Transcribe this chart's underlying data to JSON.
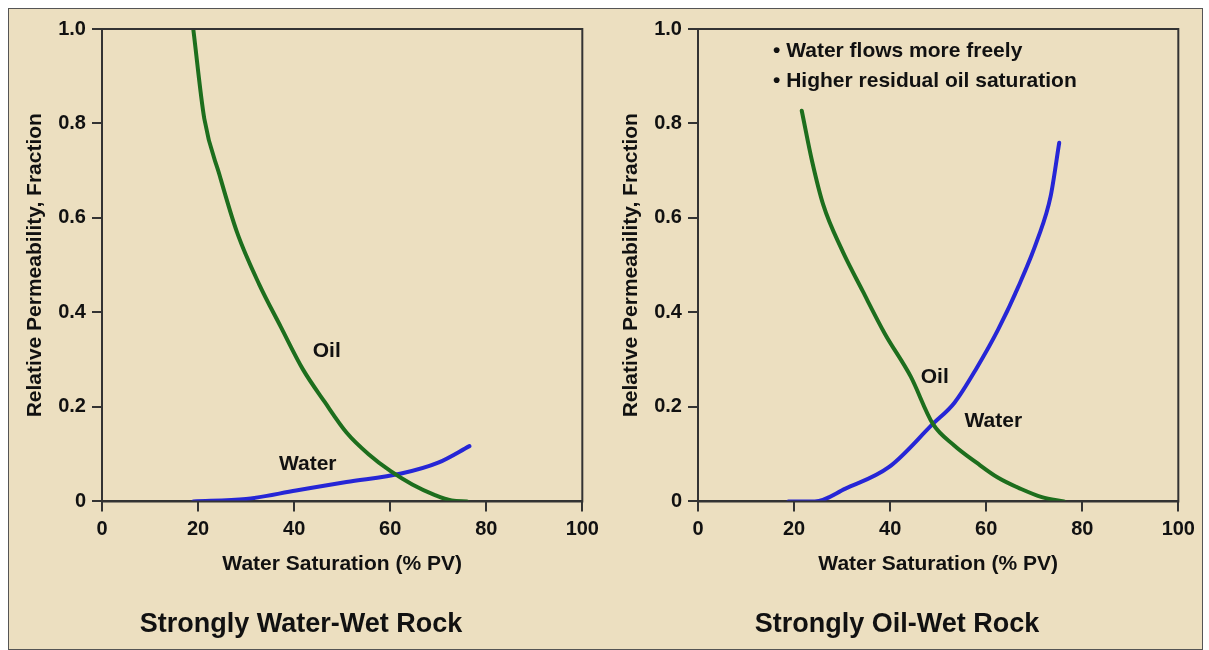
{
  "chart_data": [
    {
      "type": "line",
      "title": "Strongly Water-Wet Rock",
      "xlabel": "Water Saturation (% PV)",
      "ylabel": "Relative Permeability, Fraction",
      "xlim": [
        0,
        100
      ],
      "ylim": [
        0,
        1
      ],
      "xticks": [
        0,
        20,
        40,
        60,
        80,
        100
      ],
      "yticks": [
        0,
        0.2,
        0.4,
        0.6,
        0.8,
        {
          "value": 1,
          "label": "1.0"
        }
      ],
      "grid": false,
      "legend": false,
      "marker": "none",
      "line_style": "solid",
      "series": [
        {
          "name": "Oil",
          "color": "#1d6e1d",
          "x": [
            19,
            21.3,
            24.5,
            28.1,
            32.7,
            37.2,
            41.8,
            46.4,
            50.9,
            55.5,
            60.1,
            64.6,
            69.2,
            72.8,
            76
          ],
          "values": [
            1.0,
            0.81,
            0.69,
            0.57,
            0.46,
            0.37,
            0.28,
            0.21,
            0.146,
            0.1,
            0.064,
            0.036,
            0.014,
            0.002,
            0
          ]
        },
        {
          "name": "Water",
          "color": "#2626d6",
          "x": [
            19,
            30,
            40.4,
            50.9,
            62.3,
            70,
            76.5
          ],
          "values": [
            0,
            0.005,
            0.023,
            0.041,
            0.059,
            0.082,
            0.117
          ]
        }
      ]
    },
    {
      "type": "line",
      "title": "Strongly Oil-Wet Rock",
      "xlabel": "Water Saturation (% PV)",
      "ylabel": "Relative Permeability, Fraction",
      "xlim": [
        0,
        100
      ],
      "ylim": [
        0,
        1
      ],
      "xticks": [
        0,
        20,
        40,
        60,
        80,
        100
      ],
      "yticks": [
        0,
        0.2,
        0.4,
        0.6,
        0.8,
        {
          "value": 1,
          "label": "1.0"
        }
      ],
      "grid": false,
      "legend": false,
      "marker": "none",
      "line_style": "solid",
      "annotations": [
        "• Water flows more freely",
        "• Higher residual oil saturation"
      ],
      "series": [
        {
          "name": "Oil",
          "color": "#1d6e1d",
          "x": [
            21.6,
            23.8,
            26.1,
            29.8,
            34.3,
            38.9,
            44.3,
            48.9,
            53.4,
            58,
            62.5,
            67.1,
            71.6,
            76.2
          ],
          "values": [
            0.827,
            0.718,
            0.627,
            0.536,
            0.445,
            0.355,
            0.264,
            0.164,
            0.118,
            0.082,
            0.05,
            0.027,
            0.009,
            0
          ]
        },
        {
          "name": "Water",
          "color": "#2626d6",
          "x": [
            18.8,
            24.3,
            30.7,
            39.8,
            48.9,
            53.4,
            58,
            62.5,
            67.1,
            70.7,
            73.4,
            75.2
          ],
          "values": [
            0,
            0,
            0.027,
            0.073,
            0.164,
            0.209,
            0.282,
            0.364,
            0.464,
            0.555,
            0.645,
            0.759
          ]
        }
      ]
    }
  ]
}
